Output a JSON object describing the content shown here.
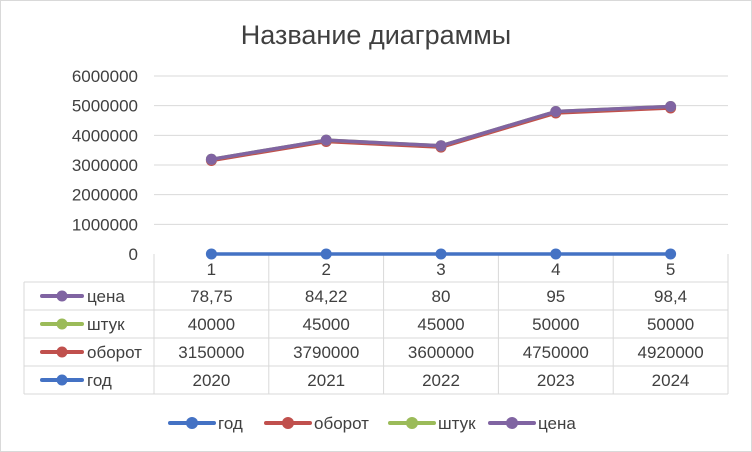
{
  "chart_data": {
    "type": "line",
    "title": "Название диаграммы",
    "categories": [
      "1",
      "2",
      "3",
      "4",
      "5"
    ],
    "ylim": [
      0,
      6000000
    ],
    "yticks": [
      "0",
      "1000000",
      "2000000",
      "3000000",
      "4000000",
      "5000000",
      "6000000"
    ],
    "grid": true,
    "legend_position": "bottom",
    "data_table": true,
    "series": [
      {
        "name": "год",
        "color": "#4472c4",
        "values": [
          2020,
          2021,
          2022,
          2023,
          2024
        ],
        "labels": [
          "2020",
          "2021",
          "2022",
          "2023",
          "2024"
        ]
      },
      {
        "name": "оборот",
        "color": "#c0504d",
        "values": [
          3150000,
          3790000,
          3600000,
          4750000,
          4920000
        ],
        "labels": [
          "3150000",
          "3790000",
          "3600000",
          "4750000",
          "4920000"
        ]
      },
      {
        "name": "штук",
        "color": "#9bbb59",
        "values": [
          40000,
          45000,
          45000,
          50000,
          50000
        ],
        "labels": [
          "40000",
          "45000",
          "45000",
          "50000",
          "50000"
        ]
      },
      {
        "name": "цена",
        "color": "#8064a2",
        "values": [
          78.75,
          84.22,
          80,
          95,
          98.4
        ],
        "labels": [
          "78,75",
          "84,22",
          "80",
          "95",
          "98,4"
        ]
      }
    ],
    "stacked": true
  }
}
